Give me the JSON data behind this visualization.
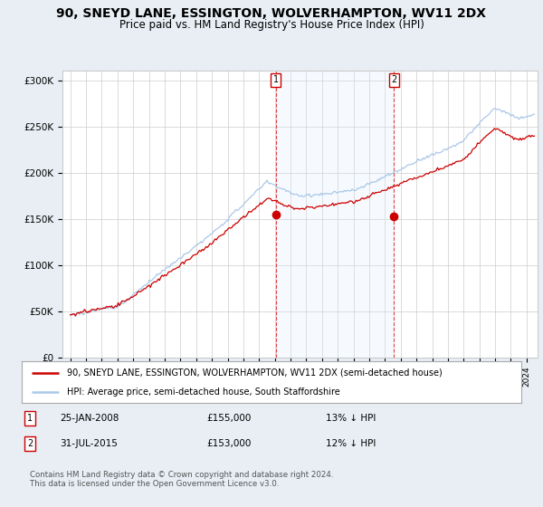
{
  "title": "90, SNEYD LANE, ESSINGTON, WOLVERHAMPTON, WV11 2DX",
  "subtitle": "Price paid vs. HM Land Registry's House Price Index (HPI)",
  "ylabel_ticks": [
    "£0",
    "£50K",
    "£100K",
    "£150K",
    "£200K",
    "£250K",
    "£300K"
  ],
  "ytick_values": [
    0,
    50000,
    100000,
    150000,
    200000,
    250000,
    300000
  ],
  "ylim": [
    0,
    310000
  ],
  "xlim_start": 1994.5,
  "xlim_end": 2024.7,
  "hpi_color": "#aac8e8",
  "price_color": "#cc0000",
  "vline_color": "#dd4444",
  "shade_color": "#ddeeff",
  "marker1_date": 2008.07,
  "marker2_date": 2015.58,
  "marker1_price": 155000,
  "marker2_price": 153000,
  "legend_label_red": "90, SNEYD LANE, ESSINGTON, WOLVERHAMPTON, WV11 2DX (semi-detached house)",
  "legend_label_blue": "HPI: Average price, semi-detached house, South Staffordshire",
  "annotation1_num": "1",
  "annotation1_date": "25-JAN-2008",
  "annotation1_price": "£155,000",
  "annotation1_hpi": "13% ↓ HPI",
  "annotation2_num": "2",
  "annotation2_date": "31-JUL-2015",
  "annotation2_price": "£153,000",
  "annotation2_hpi": "12% ↓ HPI",
  "footer": "Contains HM Land Registry data © Crown copyright and database right 2024.\nThis data is licensed under the Open Government Licence v3.0.",
  "background_color": "#e8eef4",
  "plot_bg_color": "#ffffff",
  "grid_color": "#cccccc",
  "title_fontsize": 10,
  "subtitle_fontsize": 8.5
}
